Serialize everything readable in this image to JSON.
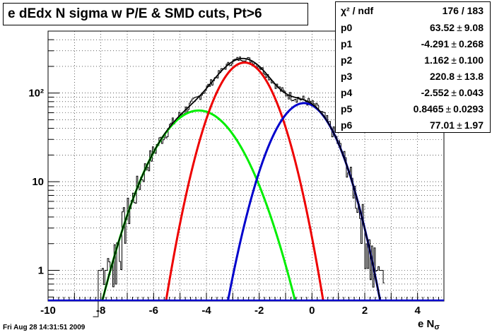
{
  "title": "e dEdx N sigma w P/E & SMD cuts, Pt>6",
  "stats": {
    "header": {
      "label": "χ² / ndf",
      "value": "176 / 183"
    },
    "params": [
      {
        "name": "p0",
        "value": "63.52",
        "error": "9.08"
      },
      {
        "name": "p1",
        "value": "-4.291",
        "error": "0.268"
      },
      {
        "name": "p2",
        "value": "1.162",
        "error": "0.100"
      },
      {
        "name": "p3",
        "value": "220.8",
        "error": "13.8"
      },
      {
        "name": "p4",
        "value": "-2.552",
        "error": "0.043"
      },
      {
        "name": "p5",
        "value": "0.8465",
        "error": "0.0293"
      },
      {
        "name": "p6",
        "value": "77.01",
        "error": "1.97"
      }
    ],
    "pm_symbol": "±"
  },
  "timestamp": "Fri Aug 28 14:31:51 2009",
  "xlabel_main": "e N",
  "xlabel_sub": "σ",
  "chart_data": {
    "type": "line",
    "title": "e dEdx N sigma w P/E & SMD cuts, Pt>6",
    "xlabel": "e Nσ",
    "ylabel": "",
    "xlim": [
      -10,
      5
    ],
    "ylim": [
      0.45,
      500
    ],
    "yscale": "log",
    "grid": true,
    "xticks": [
      -10,
      -8,
      -6,
      -4,
      -2,
      0,
      2,
      4
    ],
    "xtick_labels": [
      "-10",
      "-8",
      "-6",
      "-4",
      "-2",
      "0",
      "2",
      "4"
    ],
    "yticks": [
      1,
      10,
      100
    ],
    "ytick_labels": [
      "1",
      "10",
      "10²"
    ],
    "series": [
      {
        "color": "#00ee00",
        "kind": "gaussian",
        "amplitude": 63.52,
        "mean": -4.291,
        "sigma": 1.162
      },
      {
        "color": "#ee0000",
        "kind": "gaussian",
        "amplitude": 220.8,
        "mean": -2.552,
        "sigma": 0.8465
      },
      {
        "color": "#0000cc",
        "kind": "gaussian",
        "amplitude": 77.01,
        "mean": -0.3,
        "sigma": 0.9
      },
      {
        "color": "#000000",
        "kind": "sum_of_gaussians"
      }
    ],
    "histogram_color": "#000000",
    "histogram_bin_width": 0.05
  }
}
